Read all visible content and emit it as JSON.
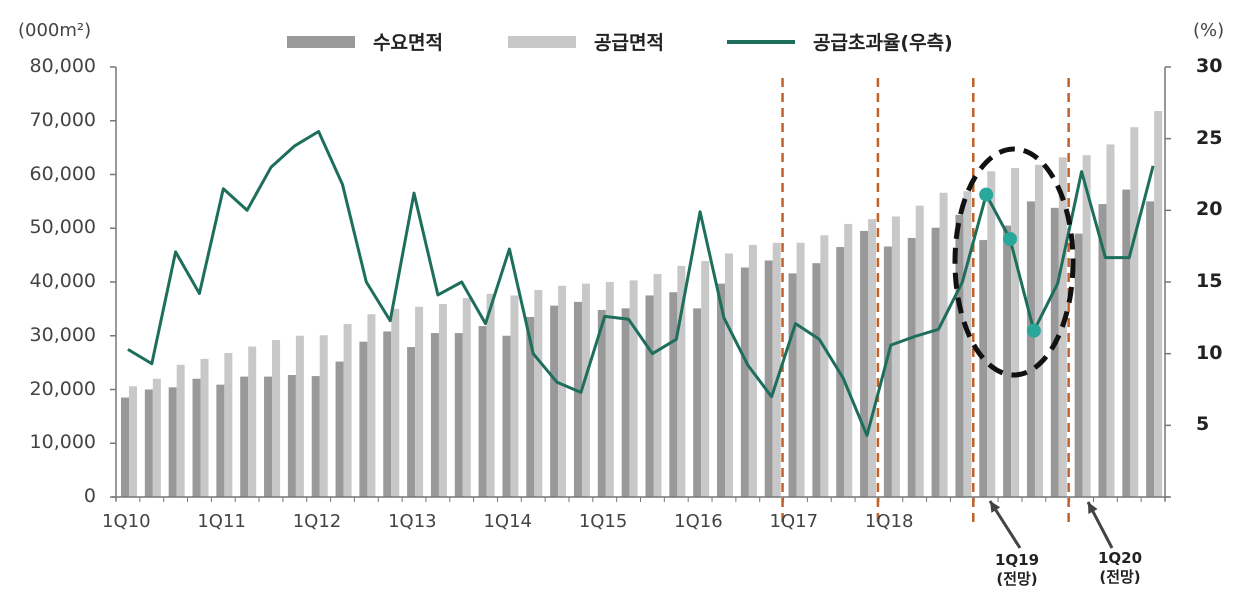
{
  "chart_data": {
    "type": "bar",
    "subtype": "combo-bar-line-dual-axis",
    "title": "",
    "left_axis": {
      "unit_label": "(000m²)",
      "range": [
        0,
        80000
      ],
      "ticks": [
        "0",
        "10,000",
        "20,000",
        "30,000",
        "40,000",
        "50,000",
        "60,000",
        "70,000",
        "80,000"
      ]
    },
    "right_axis": {
      "unit_label": "(%)",
      "range": [
        0,
        30
      ],
      "ticks": [
        "5",
        "10",
        "15",
        "20",
        "25",
        "30"
      ]
    },
    "x_tick_labels": [
      "1Q10",
      "1Q11",
      "1Q12",
      "1Q13",
      "1Q14",
      "1Q15",
      "1Q16",
      "1Q17",
      "1Q18"
    ],
    "categories": [
      "1Q10",
      "2Q10",
      "3Q10",
      "4Q10",
      "1Q11",
      "2Q11",
      "3Q11",
      "4Q11",
      "1Q12",
      "2Q12",
      "3Q12",
      "4Q12",
      "1Q13",
      "2Q13",
      "3Q13",
      "4Q13",
      "1Q14",
      "2Q14",
      "3Q14",
      "4Q14",
      "1Q15",
      "2Q15",
      "3Q15",
      "4Q15",
      "1Q16",
      "2Q16",
      "3Q16",
      "4Q16",
      "1Q17",
      "2Q17",
      "3Q17",
      "4Q17",
      "1Q18",
      "2Q18",
      "3Q18",
      "4Q18",
      "1Q19",
      "2Q19",
      "3Q19",
      "4Q19",
      "1Q20",
      "2Q20",
      "3Q20",
      "4Q20"
    ],
    "series": [
      {
        "name": "수요면적",
        "type": "bar",
        "axis": "left",
        "color": "#999999",
        "values": [
          18500,
          20000,
          20400,
          22000,
          20900,
          22400,
          22400,
          22700,
          22500,
          25200,
          28900,
          30800,
          27900,
          30500,
          30500,
          31800,
          30000,
          33500,
          35600,
          36300,
          34800,
          35100,
          37500,
          38100,
          35100,
          39700,
          42700,
          44000,
          41600,
          43500,
          46500,
          49500,
          46600,
          48200,
          50100,
          52500,
          47800,
          50500,
          55000,
          53800,
          49000,
          54500,
          57200,
          55000
        ]
      },
      {
        "name": "공급면적",
        "type": "bar",
        "axis": "left",
        "color": "#c8c8c8",
        "values": [
          20600,
          22000,
          24600,
          25700,
          26800,
          28000,
          29200,
          30000,
          30100,
          32200,
          34000,
          35000,
          35400,
          35900,
          37000,
          37800,
          37500,
          38500,
          39300,
          39700,
          40000,
          40300,
          41500,
          43000,
          43900,
          45300,
          46900,
          47300,
          47300,
          48700,
          50800,
          51700,
          52200,
          54200,
          56600,
          56900,
          60600,
          61200,
          61800,
          63200,
          63600,
          65600,
          68800,
          71800
        ]
      },
      {
        "name": "공급초과율(우측)",
        "type": "line",
        "axis": "right",
        "color": "#1e6e5c",
        "values": [
          10.3,
          9.3,
          17.1,
          14.2,
          21.5,
          20.0,
          23.0,
          24.5,
          25.5,
          21.8,
          15.0,
          12.3,
          21.2,
          14.1,
          15.0,
          12.1,
          17.3,
          10.0,
          8.0,
          7.3,
          12.6,
          12.4,
          10.0,
          11.0,
          19.9,
          12.5,
          9.2,
          7.0,
          12.1,
          11.0,
          8.3,
          4.3,
          10.6,
          11.2,
          11.7,
          15.0,
          21.1,
          18.0,
          11.6,
          14.9,
          22.7,
          16.7,
          16.7,
          23.1
        ]
      }
    ],
    "highlighted_points": {
      "series": "공급초과율(우측)",
      "categories": [
        "1Q19",
        "2Q19",
        "3Q19"
      ],
      "color": "#2aa79b"
    },
    "annotations": [
      {
        "type": "vertical-dashed-line",
        "position_after": "4Q16",
        "color": "#c0622a"
      },
      {
        "type": "vertical-dashed-line",
        "position_after": "4Q17",
        "color": "#c0622a"
      },
      {
        "type": "vertical-dashed-line",
        "position_after": "4Q18",
        "color": "#c0622a"
      },
      {
        "type": "vertical-dashed-line",
        "position_after": "4Q19",
        "color": "#c0622a"
      },
      {
        "type": "dashed-ellipse",
        "around": [
          "4Q18",
          "1Q19",
          "2Q19",
          "3Q19",
          "4Q19"
        ],
        "color": "#111111"
      },
      {
        "type": "arrow-label",
        "text_line1": "1Q19",
        "text_line2": "(전망)"
      },
      {
        "type": "arrow-label",
        "text_line1": "1Q20",
        "text_line2": "(전망)"
      }
    ],
    "legend_position": "top",
    "grid": false,
    "xlabel": "",
    "ylabel": "(000m²)",
    "y2label": "(%)"
  },
  "labels": {
    "left_unit": "(000m²)",
    "right_unit": "(%)",
    "legend": [
      "수요면적",
      "공급면적",
      "공급초과율(우측)"
    ],
    "note_1q19_a": "1Q19",
    "note_1q19_b": "(전망)",
    "note_1q20_a": "1Q20",
    "note_1q20_b": "(전망)"
  }
}
